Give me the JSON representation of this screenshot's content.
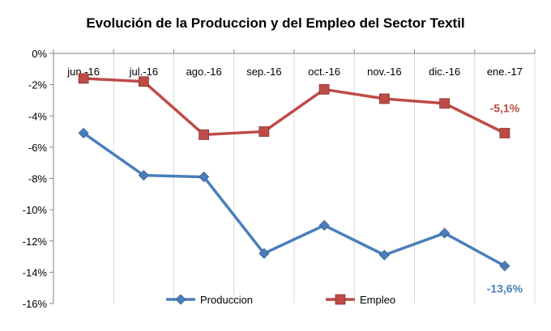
{
  "chart_data": {
    "type": "line",
    "title": "Evolución de la Produccion y del Empleo del Sector Textil",
    "xlabel": "",
    "ylabel": "",
    "categories": [
      "jun.-16",
      "jul.-16",
      "ago.-16",
      "sep.-16",
      "oct.-16",
      "nov.-16",
      "dic.-16",
      "ene.-17"
    ],
    "yticks": [
      "0%",
      "-2%",
      "-4%",
      "-6%",
      "-8%",
      "-10%",
      "-12%",
      "-14%",
      "-16%"
    ],
    "ylim": [
      -16,
      0
    ],
    "x_axis_position": "top",
    "grid": {
      "horizontal": false,
      "vertical": true
    },
    "legend_position": "bottom",
    "series": [
      {
        "name": "Produccion",
        "color": "#4A7EBB",
        "marker": "diamond",
        "values": [
          -5.1,
          -7.8,
          -7.9,
          -12.8,
          -11.0,
          -12.9,
          -11.5,
          -13.6
        ],
        "end_label": "-13,6%"
      },
      {
        "name": "Empleo",
        "color": "#BE4B48",
        "marker": "square",
        "values": [
          -1.6,
          -1.8,
          -5.2,
          -5.0,
          -2.3,
          -2.9,
          -3.2,
          -5.1
        ],
        "end_label": "-5,1%"
      }
    ]
  }
}
